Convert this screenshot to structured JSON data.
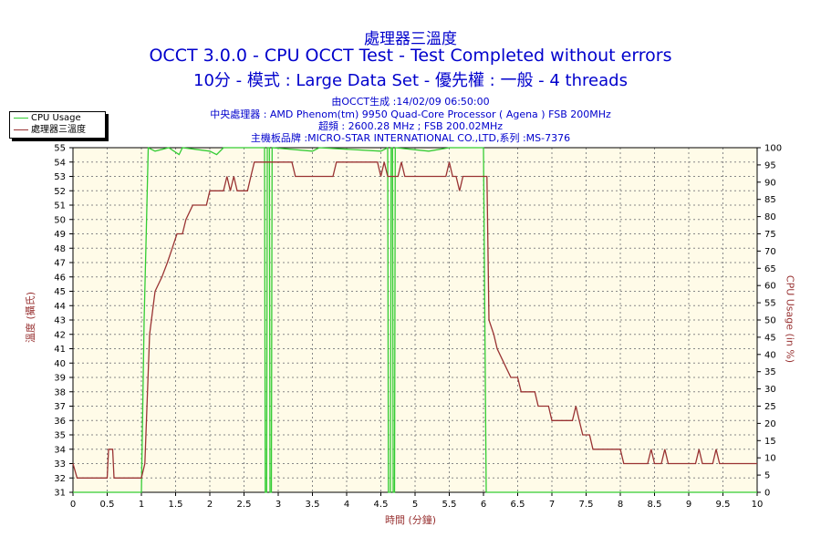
{
  "header": {
    "title1": "處理器三溫度",
    "title2": "OCCT 3.0.0 - CPU OCCT Test - Test Completed without errors",
    "title3": "10分 - 模式 : Large Data Set - 優先權 : 一般 - 4 threads",
    "info1": "由OCCT生成 :14/02/09 06:50:00",
    "info2": "中央處理器 : AMD Phenom(tm) 9950 Quad-Core Processor ( Agena ) FSB 200MHz",
    "info3": "超頻 : 2600.28 MHz ; FSB 200.02MHz",
    "info4": "主機板品牌 :MICRO-STAR INTERNATIONAL CO.,LTD,系列 :MS-7376"
  },
  "colors": {
    "temp": "#993333",
    "cpu": "#33cc33",
    "plot_bg": "#fffbe8",
    "title": "#0000cc"
  },
  "chart_data": {
    "type": "line",
    "xlabel": "時間 (分鐘)",
    "ylabel": "溫度 (攝氏)",
    "y2label": "CPU Usage (in %)",
    "xlim": [
      0,
      10
    ],
    "ylim": [
      31,
      55
    ],
    "y2lim": [
      0,
      100
    ],
    "grid": true,
    "legend_position": "top-left",
    "x_ticks": [
      "0",
      "0.5",
      "1",
      "1.5",
      "2",
      "2.5",
      "3",
      "3.5",
      "4",
      "4.5",
      "5",
      "5.5",
      "6",
      "6.5",
      "7",
      "7.5",
      "8",
      "8.5",
      "9",
      "9.5",
      "10"
    ],
    "y_ticks": [
      "31",
      "32",
      "33",
      "34",
      "35",
      "36",
      "37",
      "38",
      "39",
      "40",
      "41",
      "42",
      "43",
      "44",
      "45",
      "46",
      "47",
      "48",
      "49",
      "50",
      "51",
      "52",
      "53",
      "54",
      "55"
    ],
    "y2_ticks": [
      "0",
      "5",
      "10",
      "15",
      "20",
      "25",
      "30",
      "35",
      "40",
      "45",
      "50",
      "55",
      "60",
      "65",
      "70",
      "75",
      "80",
      "85",
      "90",
      "95",
      "100"
    ],
    "series": [
      {
        "name": "CPU Usage",
        "axis": "right",
        "color": "#33cc33",
        "points": [
          [
            0,
            0
          ],
          [
            1.0,
            0
          ],
          [
            1.04,
            50
          ],
          [
            1.07,
            75
          ],
          [
            1.1,
            100
          ],
          [
            1.2,
            99
          ],
          [
            1.4,
            100
          ],
          [
            1.55,
            98
          ],
          [
            1.6,
            100
          ],
          [
            2.0,
            99
          ],
          [
            2.1,
            98
          ],
          [
            2.2,
            100
          ],
          [
            2.8,
            100
          ],
          [
            2.81,
            0
          ],
          [
            2.83,
            0
          ],
          [
            2.84,
            100
          ],
          [
            2.87,
            100
          ],
          [
            2.88,
            0
          ],
          [
            2.9,
            0
          ],
          [
            2.91,
            100
          ],
          [
            3.5,
            99
          ],
          [
            3.6,
            100
          ],
          [
            4.5,
            99
          ],
          [
            4.6,
            100
          ],
          [
            4.61,
            0
          ],
          [
            4.64,
            0
          ],
          [
            4.65,
            100
          ],
          [
            4.67,
            100
          ],
          [
            4.68,
            0
          ],
          [
            4.7,
            0
          ],
          [
            4.71,
            100
          ],
          [
            5.2,
            99
          ],
          [
            5.5,
            100
          ],
          [
            6.0,
            100
          ],
          [
            6.02,
            50
          ],
          [
            6.04,
            0
          ],
          [
            10,
            0
          ]
        ]
      },
      {
        "name": "處理器三溫度",
        "axis": "left",
        "color": "#993333",
        "points": [
          [
            0,
            33
          ],
          [
            0.06,
            32
          ],
          [
            0.5,
            32
          ],
          [
            0.52,
            34
          ],
          [
            0.58,
            34
          ],
          [
            0.6,
            32
          ],
          [
            1.0,
            32
          ],
          [
            1.05,
            33
          ],
          [
            1.12,
            42
          ],
          [
            1.2,
            45
          ],
          [
            1.3,
            46
          ],
          [
            1.38,
            47
          ],
          [
            1.45,
            48
          ],
          [
            1.52,
            49
          ],
          [
            1.6,
            49
          ],
          [
            1.65,
            50
          ],
          [
            1.75,
            51
          ],
          [
            1.95,
            51
          ],
          [
            2.0,
            52
          ],
          [
            2.2,
            52
          ],
          [
            2.25,
            53
          ],
          [
            2.3,
            52
          ],
          [
            2.35,
            53
          ],
          [
            2.4,
            52
          ],
          [
            2.55,
            52
          ],
          [
            2.6,
            53
          ],
          [
            2.65,
            54
          ],
          [
            3.2,
            54
          ],
          [
            3.25,
            53
          ],
          [
            3.8,
            53
          ],
          [
            3.85,
            54
          ],
          [
            4.45,
            54
          ],
          [
            4.5,
            53
          ],
          [
            4.55,
            54
          ],
          [
            4.6,
            53
          ],
          [
            4.75,
            53
          ],
          [
            4.8,
            54
          ],
          [
            4.85,
            53
          ],
          [
            5.45,
            53
          ],
          [
            5.5,
            54
          ],
          [
            5.55,
            53
          ],
          [
            5.6,
            53
          ],
          [
            5.65,
            52
          ],
          [
            5.7,
            53
          ],
          [
            6.05,
            53
          ],
          [
            6.08,
            43
          ],
          [
            6.15,
            42
          ],
          [
            6.2,
            41
          ],
          [
            6.3,
            40
          ],
          [
            6.4,
            39
          ],
          [
            6.5,
            39
          ],
          [
            6.55,
            38
          ],
          [
            6.75,
            38
          ],
          [
            6.8,
            37
          ],
          [
            6.95,
            37
          ],
          [
            7.0,
            36
          ],
          [
            7.3,
            36
          ],
          [
            7.35,
            37
          ],
          [
            7.4,
            36
          ],
          [
            7.45,
            35
          ],
          [
            7.55,
            35
          ],
          [
            7.6,
            34
          ],
          [
            8.0,
            34
          ],
          [
            8.05,
            33
          ],
          [
            8.4,
            33
          ],
          [
            8.45,
            34
          ],
          [
            8.5,
            33
          ],
          [
            8.6,
            33
          ],
          [
            8.65,
            34
          ],
          [
            8.7,
            33
          ],
          [
            9.1,
            33
          ],
          [
            9.15,
            34
          ],
          [
            9.2,
            33
          ],
          [
            9.35,
            33
          ],
          [
            9.4,
            34
          ],
          [
            9.45,
            33
          ],
          [
            10,
            33
          ]
        ]
      }
    ]
  }
}
